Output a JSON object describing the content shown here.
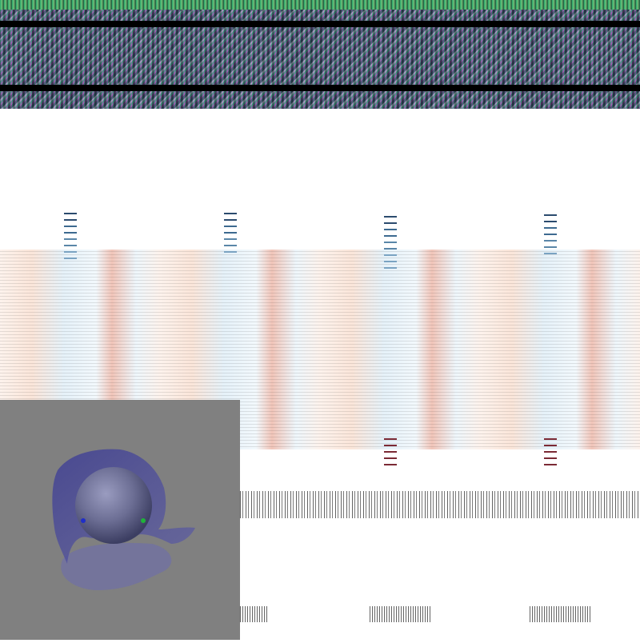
{
  "colors": {
    "viewport_background": "#808080",
    "surface": "#4a4a96",
    "sphere": "#6c6e94",
    "marker_blue": "#1f2ec8",
    "marker_green": "#1fb33a",
    "band_red": "#d4734f",
    "band_blue": "#a9cfe6"
  },
  "viewport": {
    "markers": [
      {
        "name": "blue-marker",
        "color": "#1f2ec8"
      },
      {
        "name": "green-marker",
        "color": "#1fb33a"
      }
    ]
  },
  "colorbars": [
    {
      "name": "colorbar-1"
    },
    {
      "name": "colorbar-2"
    },
    {
      "name": "colorbar-3"
    },
    {
      "name": "colorbar-4"
    }
  ]
}
